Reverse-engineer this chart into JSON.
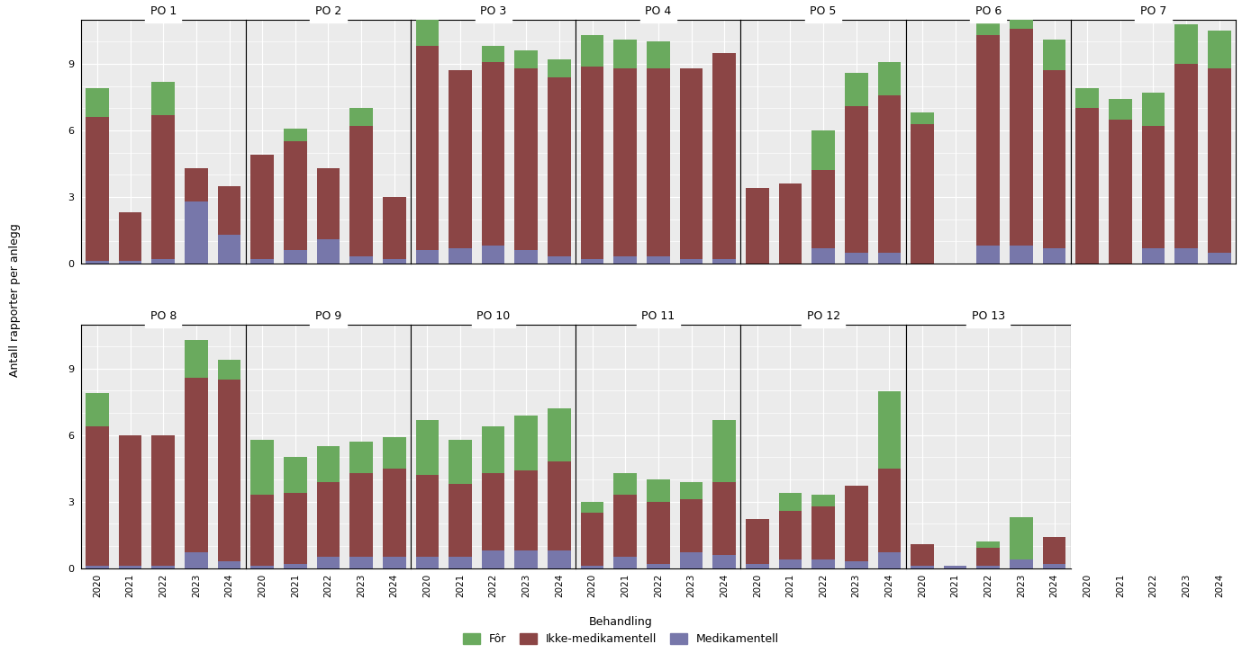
{
  "panels": [
    {
      "name": "PO 1",
      "for": [
        1.3,
        0.0,
        1.5,
        0.0,
        0.0
      ],
      "ikke_med": [
        6.5,
        2.2,
        6.5,
        1.5,
        2.2
      ],
      "med": [
        0.1,
        0.1,
        0.2,
        2.8,
        1.3
      ]
    },
    {
      "name": "PO 2",
      "for": [
        0.0,
        0.6,
        0.0,
        0.8,
        0.0
      ],
      "ikke_med": [
        4.7,
        4.9,
        3.2,
        5.9,
        2.8
      ],
      "med": [
        0.2,
        0.6,
        1.1,
        0.3,
        0.2
      ]
    },
    {
      "name": "PO 3",
      "for": [
        1.6,
        0.0,
        0.7,
        0.8,
        0.8
      ],
      "ikke_med": [
        9.2,
        8.0,
        8.3,
        8.2,
        8.1
      ],
      "med": [
        0.6,
        0.7,
        0.8,
        0.6,
        0.3
      ]
    },
    {
      "name": "PO 4",
      "for": [
        1.4,
        1.3,
        1.2,
        0.0,
        0.0
      ],
      "ikke_med": [
        8.7,
        8.5,
        8.5,
        8.6,
        9.3
      ],
      "med": [
        0.2,
        0.3,
        0.3,
        0.2,
        0.2
      ]
    },
    {
      "name": "PO 5",
      "for": [
        0.0,
        0.0,
        1.8,
        1.5,
        1.5
      ],
      "ikke_med": [
        3.4,
        3.6,
        3.5,
        6.6,
        7.1
      ],
      "med": [
        0.0,
        0.0,
        0.7,
        0.5,
        0.5
      ]
    },
    {
      "name": "PO 6",
      "for": [
        0.5,
        0.0,
        2.0,
        2.5,
        1.4
      ],
      "ikke_med": [
        6.3,
        0.0,
        9.5,
        9.8,
        8.0
      ],
      "med": [
        0.0,
        0.0,
        0.8,
        0.8,
        0.7
      ]
    },
    {
      "name": "PO 7",
      "for": [
        0.9,
        0.9,
        1.5,
        1.8,
        1.7
      ],
      "ikke_med": [
        7.0,
        6.5,
        5.5,
        8.3,
        8.3
      ],
      "med": [
        0.0,
        0.0,
        0.7,
        0.7,
        0.5
      ]
    },
    {
      "name": "PO 8",
      "for": [
        1.5,
        0.0,
        0.0,
        1.7,
        0.9
      ],
      "ikke_med": [
        6.3,
        5.9,
        5.9,
        7.9,
        8.2
      ],
      "med": [
        0.1,
        0.1,
        0.1,
        0.7,
        0.3
      ]
    },
    {
      "name": "PO 9",
      "for": [
        2.5,
        1.6,
        1.6,
        1.4,
        1.4
      ],
      "ikke_med": [
        3.2,
        3.2,
        3.4,
        3.8,
        4.0
      ],
      "med": [
        0.1,
        0.2,
        0.5,
        0.5,
        0.5
      ]
    },
    {
      "name": "PO 10",
      "for": [
        2.5,
        2.0,
        2.1,
        2.5,
        2.4
      ],
      "ikke_med": [
        3.7,
        3.3,
        3.5,
        3.6,
        4.0
      ],
      "med": [
        0.5,
        0.5,
        0.8,
        0.8,
        0.8
      ]
    },
    {
      "name": "PO 11",
      "for": [
        0.5,
        1.0,
        1.0,
        0.8,
        2.8
      ],
      "ikke_med": [
        2.4,
        2.8,
        2.8,
        2.4,
        3.3
      ],
      "med": [
        0.1,
        0.5,
        0.2,
        0.7,
        0.6
      ]
    },
    {
      "name": "PO 12",
      "for": [
        0.0,
        0.8,
        0.5,
        0.0,
        3.5
      ],
      "ikke_med": [
        2.0,
        2.2,
        2.4,
        3.4,
        3.8
      ],
      "med": [
        0.2,
        0.4,
        0.4,
        0.3,
        0.7
      ]
    },
    {
      "name": "PO 13",
      "for": [
        0.0,
        0.0,
        0.3,
        1.9,
        0.0
      ],
      "ikke_med": [
        1.0,
        0.0,
        0.8,
        0.0,
        1.2
      ],
      "med": [
        0.1,
        0.1,
        0.1,
        0.4,
        0.2
      ]
    }
  ],
  "years": [
    2020,
    2021,
    2022,
    2023,
    2024
  ],
  "color_for": "#6aaa5e",
  "color_ikke_med": "#8b4545",
  "color_med": "#7777aa",
  "bg_color": "#ebebeb",
  "grid_color": "#ffffff",
  "ylabel": "Antall rapporter per anlegg",
  "ylim": [
    0,
    11
  ],
  "yticks": [
    0,
    3,
    6,
    9
  ],
  "legend_title": "Behandling",
  "top_row": [
    "PO 1",
    "PO 2",
    "PO 3",
    "PO 4",
    "PO 5",
    "PO 6",
    "PO 7"
  ],
  "bottom_row": [
    "PO 8",
    "PO 9",
    "PO 10",
    "PO 11",
    "PO 12",
    "PO 13"
  ]
}
